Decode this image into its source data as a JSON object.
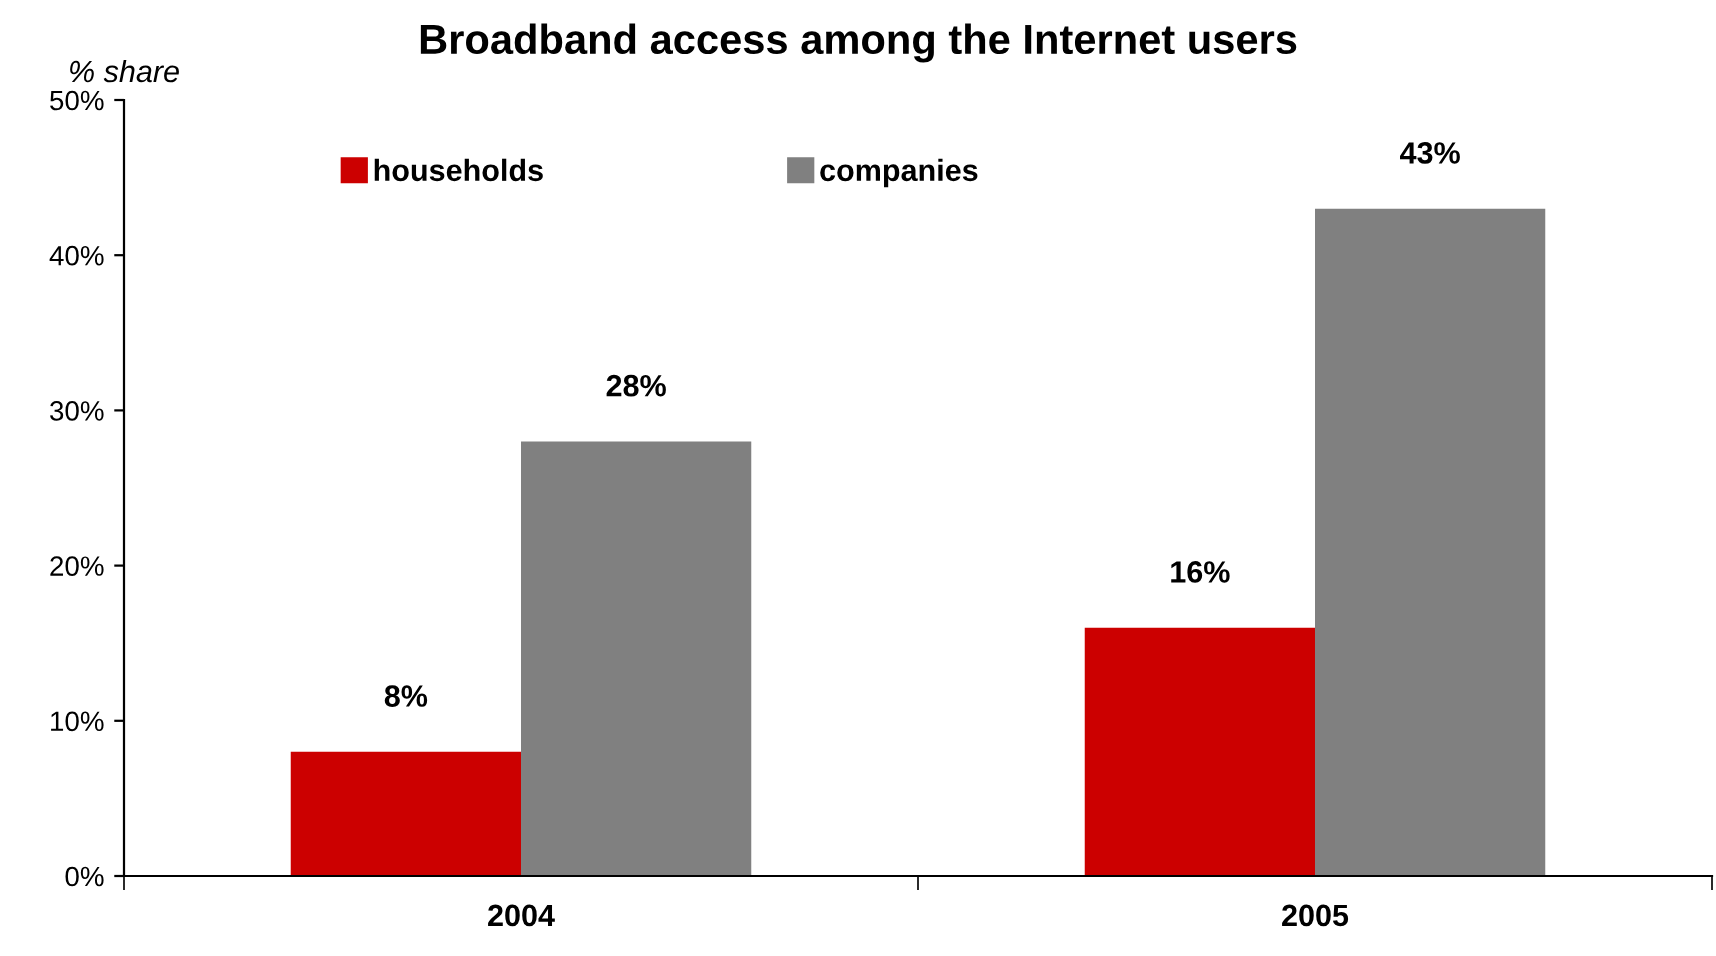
{
  "chart_data": {
    "type": "bar",
    "title": "Broadband access among the Internet users",
    "ylabel": "% share",
    "categories": [
      "2004",
      "2005"
    ],
    "series": [
      {
        "name": "households",
        "color": "#cc0000",
        "values": [
          8,
          16
        ],
        "value_labels": [
          "8%",
          "16%"
        ]
      },
      {
        "name": "companies",
        "color": "#808080",
        "values": [
          28,
          43
        ],
        "value_labels": [
          "28%",
          "43%"
        ]
      }
    ],
    "ylim": [
      0,
      50
    ],
    "yticks": [
      {
        "value": 0,
        "label": "0%"
      },
      {
        "value": 10,
        "label": "10%"
      },
      {
        "value": 20,
        "label": "20%"
      },
      {
        "value": 30,
        "label": "30%"
      },
      {
        "value": 40,
        "label": "40%"
      },
      {
        "value": 50,
        "label": "50%"
      }
    ],
    "legend": "top left",
    "grid": false
  }
}
